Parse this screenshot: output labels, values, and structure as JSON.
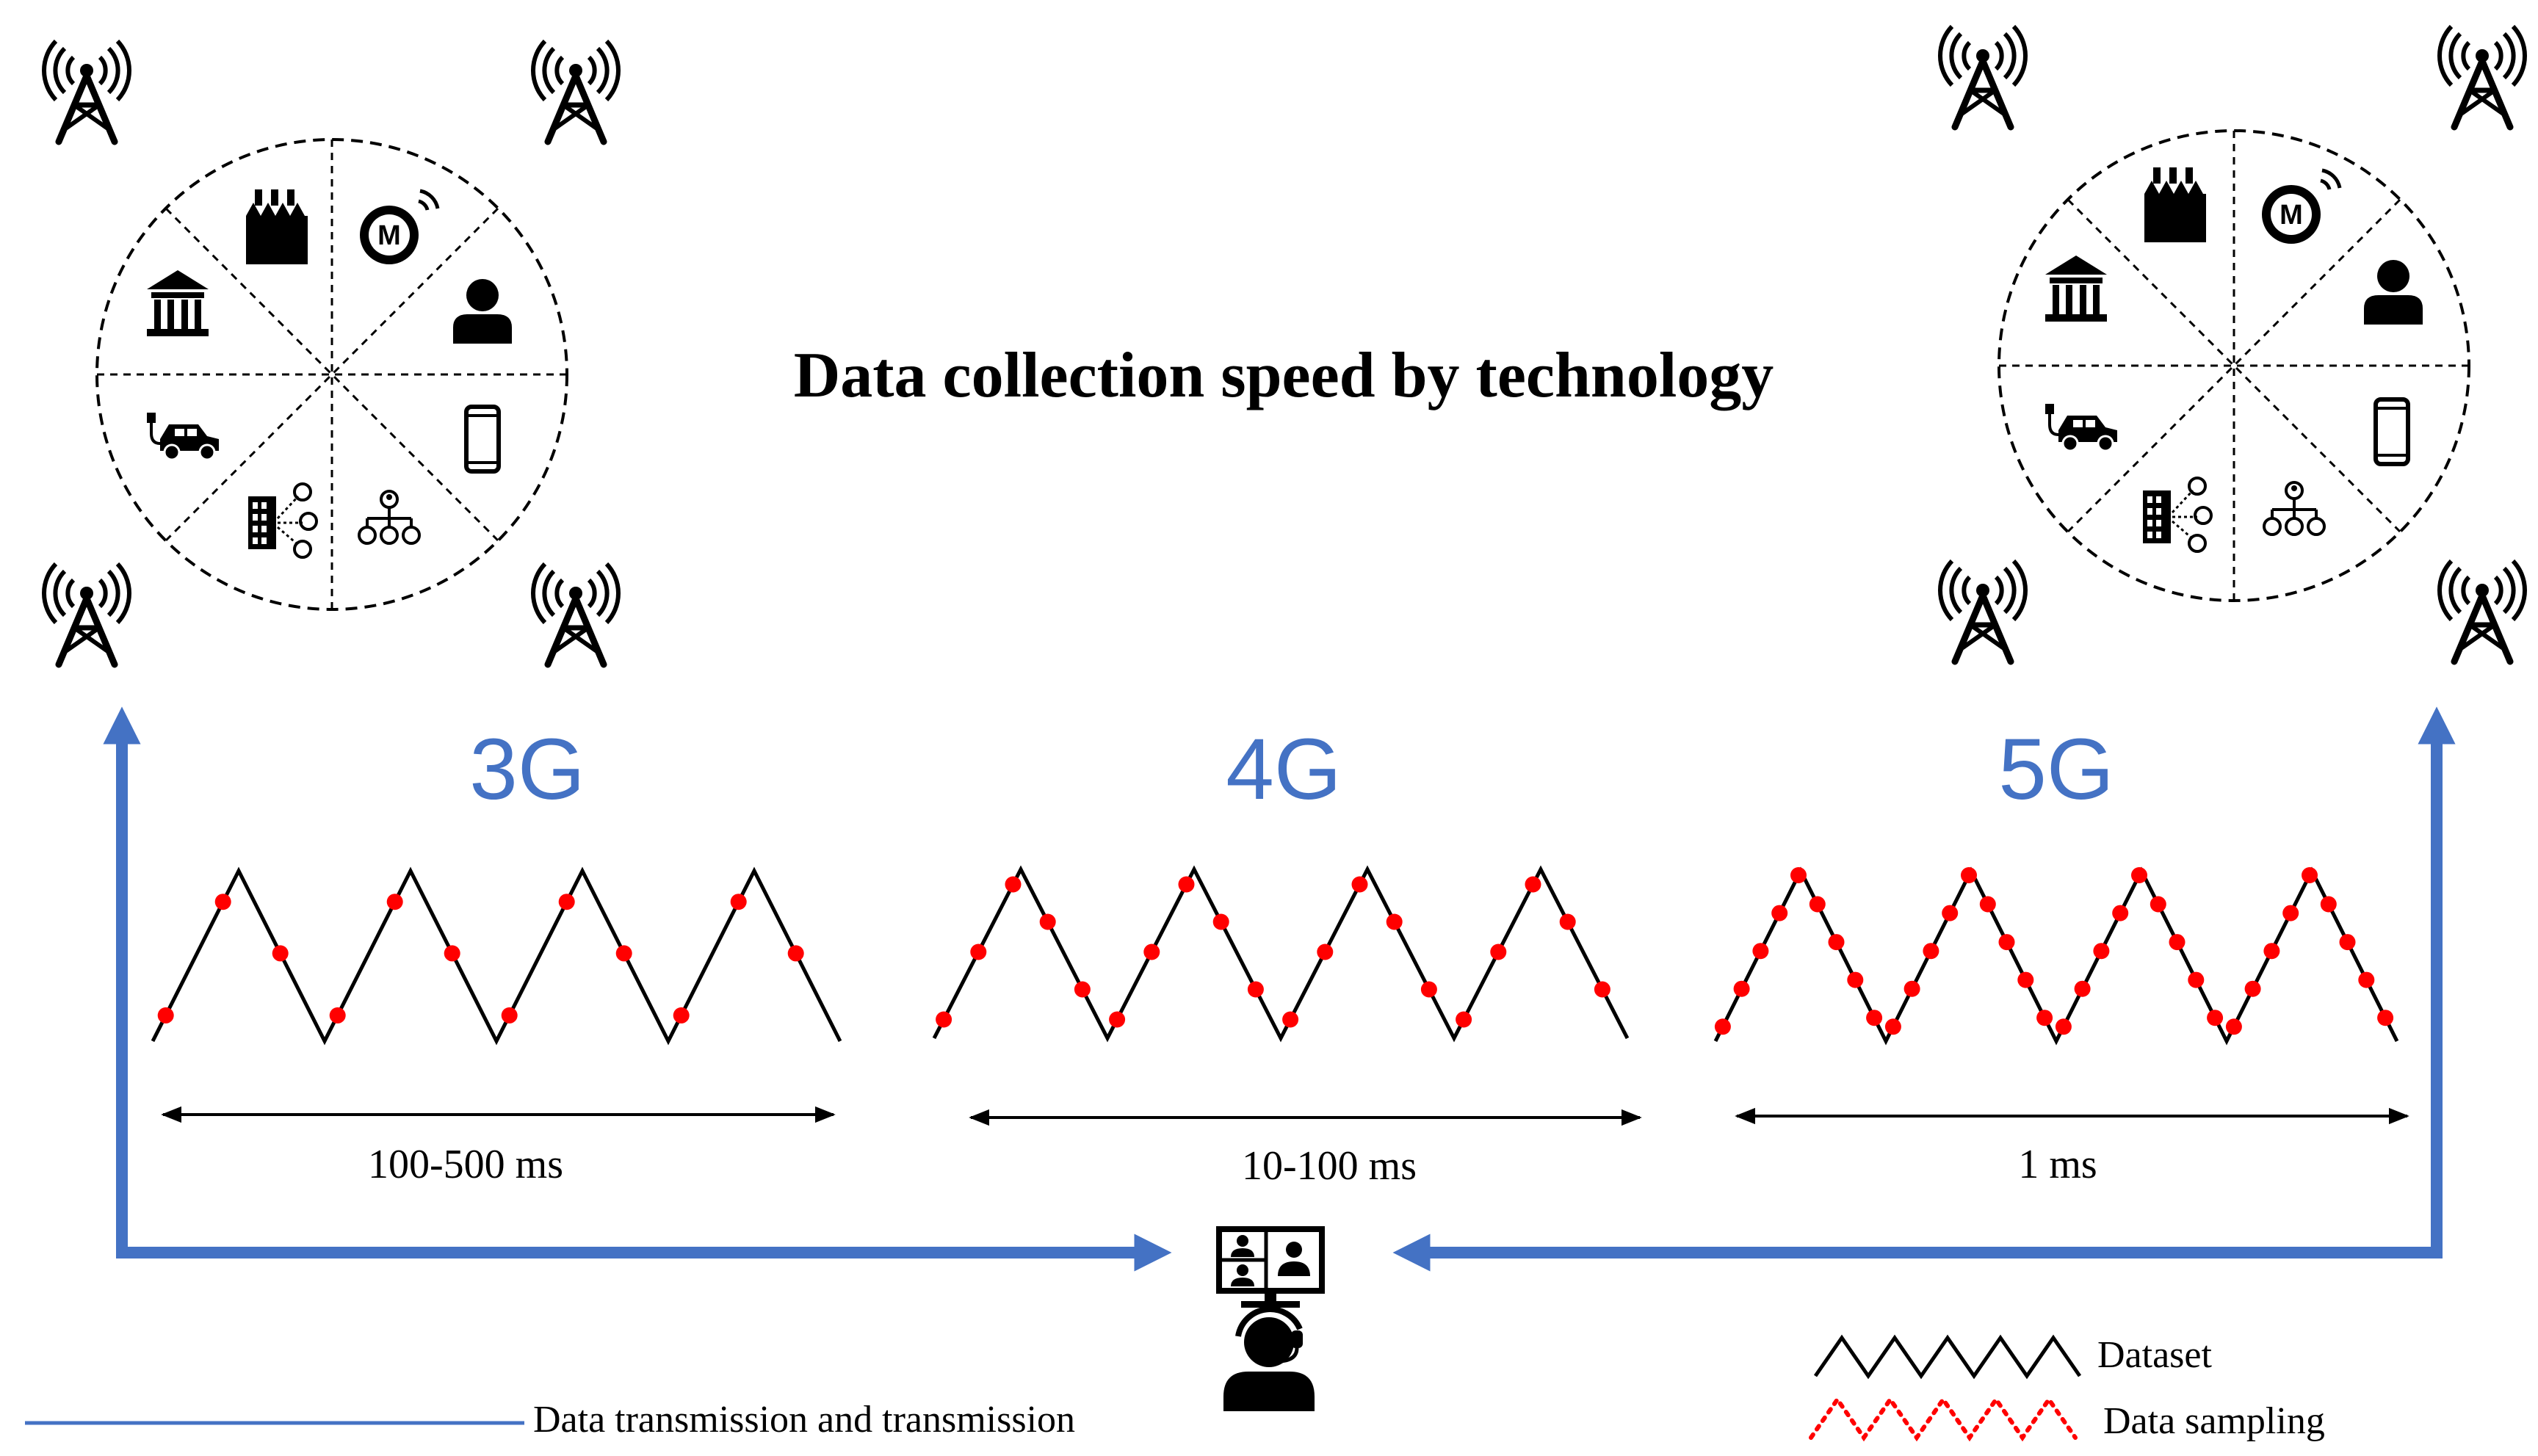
{
  "title": "Data collection speed by technology",
  "colors": {
    "arrow": "#4472c4",
    "dataset": "#000000",
    "sampling": "#ff0000",
    "tech_label": "#4472c4"
  },
  "technologies": [
    {
      "label": "3G",
      "interval": "100-500 ms",
      "sample_count": 12
    },
    {
      "label": "4G",
      "interval": "10-100 ms",
      "sample_count": 20
    },
    {
      "label": "5G",
      "interval": "1 ms",
      "sample_count": 36
    }
  ],
  "hub_icons": [
    "factory-icon",
    "meter-wireless-icon",
    "person-icon",
    "smartphone-icon",
    "org-network-icon",
    "building-network-icon",
    "electric-car-icon",
    "bank-icon"
  ],
  "tower_icon": "radio-tower-icon",
  "operator_icon": "operator-workstation-icon",
  "legend": {
    "dataset": "Dataset",
    "sampling": "Data sampling",
    "transmission": "Data transmission and transmission"
  }
}
